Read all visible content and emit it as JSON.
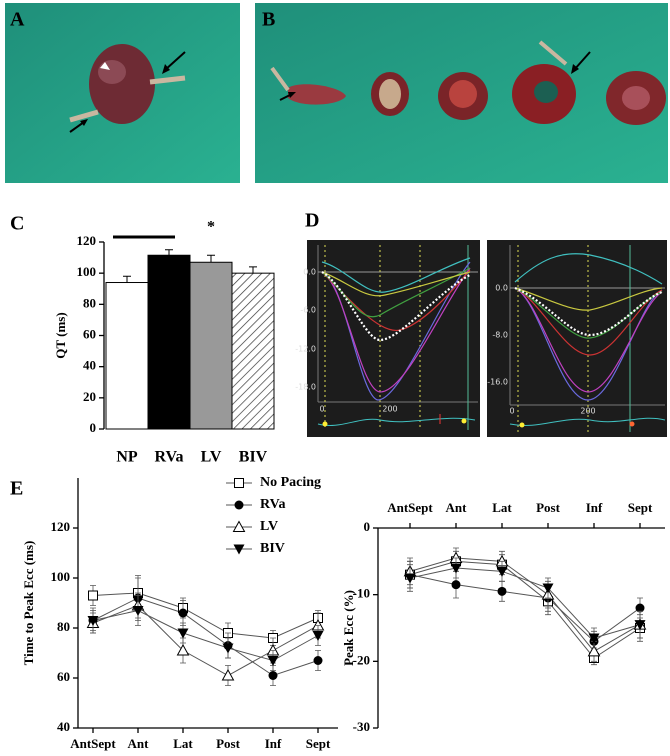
{
  "panel_labels": [
    "A",
    "B",
    "C",
    "D",
    "E"
  ],
  "panel_d": [
    {
      "yticks": [
        "0.0",
        "-6.0",
        "-12.0",
        "-18.0"
      ],
      "xticks": [
        "0",
        "200"
      ]
    },
    {
      "yticks": [
        "0.0",
        "-8.0",
        "-16.0"
      ],
      "xticks": [
        "0",
        "200"
      ]
    }
  ],
  "chart_data": [
    {
      "type": "bar",
      "y_label": "QT (ms)",
      "categories": [
        "NP",
        "RVa",
        "LV",
        "BIV"
      ],
      "values": [
        94,
        111.5,
        107,
        100
      ],
      "errors": [
        4,
        3.5,
        4.5,
        4
      ],
      "colors": [
        "#ffffff",
        "#000000",
        "#999999",
        "#ffffff"
      ],
      "hatched": [
        false,
        false,
        false,
        true
      ],
      "ylim": [
        0,
        120
      ],
      "yticks": [
        0,
        20,
        40,
        60,
        80,
        100,
        120
      ],
      "annotation": "*"
    },
    {
      "type": "line",
      "y_label": "Time to Peak Ecc (ms)",
      "x_axis_position": "bottom",
      "categories": [
        "AntSept",
        "Ant",
        "Lat",
        "Post",
        "Inf",
        "Sept"
      ],
      "series": [
        {
          "name": "No Pacing",
          "color": "#555555",
          "marker": "square-open",
          "values": [
            93,
            94,
            88,
            78,
            76,
            84
          ],
          "errors": [
            4,
            6,
            4,
            4,
            3,
            3
          ]
        },
        {
          "name": "RVa",
          "color": "#555555",
          "marker": "circle-filled",
          "values": [
            83,
            92,
            86,
            73,
            61,
            67
          ],
          "errors": [
            4,
            9,
            5,
            5,
            4,
            4
          ]
        },
        {
          "name": "LV",
          "color": "#555555",
          "marker": "triangle-open",
          "values": [
            82,
            89,
            71,
            61,
            71,
            81
          ],
          "errors": [
            4,
            5,
            5,
            4,
            5,
            5
          ]
        },
        {
          "name": "BIV",
          "color": "#555555",
          "marker": "triangle-down-filled",
          "values": [
            83,
            87,
            78,
            72,
            67,
            77
          ],
          "errors": [
            5,
            6,
            4,
            4,
            4,
            4
          ]
        }
      ],
      "ylim": [
        40,
        140
      ],
      "yticks": [
        40,
        60,
        80,
        100,
        120
      ],
      "legend": "top-right"
    },
    {
      "type": "line",
      "y_label": "Peak Ecc (%)",
      "x_axis_position": "top",
      "categories": [
        "AntSept",
        "Ant",
        "Lat",
        "Post",
        "Inf",
        "Sept"
      ],
      "series": [
        {
          "color": "#555555",
          "marker": "square-open",
          "values": [
            -7,
            -5,
            -5.5,
            -11,
            -19.5,
            -15
          ],
          "errors": [
            2,
            1.5,
            1.5,
            2,
            1,
            2
          ]
        },
        {
          "color": "#555555",
          "marker": "circle-filled",
          "values": [
            -7,
            -8.5,
            -9.5,
            -10.5,
            -17,
            -12
          ],
          "errors": [
            2,
            2,
            1.5,
            2,
            1.5,
            1.5
          ]
        },
        {
          "color": "#555555",
          "marker": "triangle-open",
          "values": [
            -6.5,
            -4.5,
            -5,
            -10,
            -18.5,
            -14.5
          ],
          "errors": [
            2,
            1.5,
            1.5,
            2,
            1.5,
            2
          ]
        },
        {
          "color": "#555555",
          "marker": "triangle-down-filled",
          "values": [
            -7.5,
            -6,
            -6.5,
            -9,
            -16.5,
            -14.5
          ],
          "errors": [
            2,
            1.5,
            1.5,
            1.5,
            1.5,
            2
          ]
        }
      ],
      "ylim": [
        -30,
        0
      ],
      "yticks": [
        -30,
        -20,
        -10,
        0
      ]
    }
  ]
}
